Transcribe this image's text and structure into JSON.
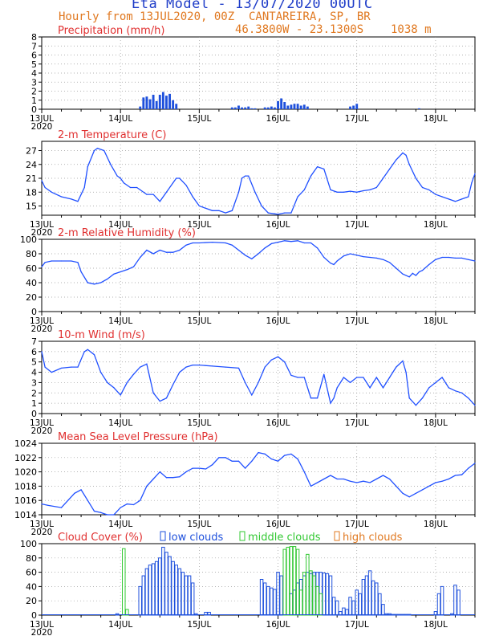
{
  "header": {
    "title": "Eta Model - 13/07/2020 00UTC",
    "subtitle": "Hourly from 13JUL2020, 00Z",
    "location": "CANTAREIRA, SP, BR",
    "coords": "46.3800W - 23.1300S",
    "elevation": "1038  m"
  },
  "colors": {
    "title": "#1e3cc8",
    "info": "#e07820",
    "panel_title": "#e03030",
    "line": "#2050ff",
    "axis": "#000000",
    "grid": "#999999",
    "low": "#1e50dc",
    "mid": "#32c832",
    "high": "#e07820"
  },
  "x_axis": {
    "tick_labels": [
      "13JUL",
      "14JUL",
      "15JUL",
      "16JUL",
      "17JUL",
      "18JUL"
    ],
    "year_label": "2020",
    "range_hours": [
      0,
      132
    ]
  },
  "chart_data": [
    {
      "type": "bar",
      "title": "Precipitation (mm/h)",
      "unit": "mm/h",
      "ylim": [
        0,
        8
      ],
      "yticks": [
        "0",
        "1",
        "2",
        "3",
        "4",
        "5",
        "6",
        "7",
        "8"
      ],
      "x": [
        30,
        31,
        32,
        33,
        34,
        35,
        36,
        37,
        38,
        39,
        40,
        41,
        58,
        59,
        60,
        61,
        62,
        63,
        64,
        65,
        66,
        67,
        68,
        69,
        70,
        71,
        72,
        73,
        74,
        75,
        76,
        77,
        78,
        79,
        80,
        81,
        82,
        83,
        84,
        85,
        86,
        87,
        88,
        89,
        90,
        91,
        92,
        93,
        94,
        95,
        96,
        97,
        98,
        99,
        100,
        101,
        102,
        103,
        104,
        105,
        106,
        107,
        108,
        109,
        110,
        111,
        112,
        113,
        114,
        115,
        116,
        117,
        118,
        119,
        120,
        121,
        122,
        123,
        124,
        125,
        126,
        127,
        128,
        129,
        130,
        131
      ],
      "values": [
        0.3,
        1.3,
        1.4,
        1.1,
        1.6,
        0.9,
        1.6,
        1.9,
        1.5,
        1.7,
        1.0,
        0.6,
        0.2,
        0.2,
        0.4,
        0.2,
        0.2,
        0.3,
        0.1,
        0.1,
        0.0,
        0.0,
        0.2,
        0.2,
        0.3,
        0.2,
        0.9,
        1.2,
        0.8,
        0.4,
        0.5,
        0.6,
        0.6,
        0.4,
        0.5,
        0.3,
        0.0,
        0.0,
        0.0,
        0.0,
        0.0,
        0.0,
        0.0,
        0.0,
        0.0,
        0.0,
        0.0,
        0.0,
        0.3,
        0.4,
        0.6,
        0.0,
        0.0,
        0.0,
        0.0,
        0.0,
        0.0,
        0.0,
        0.0,
        0.0,
        0.0,
        0.0,
        0.0,
        0.0,
        0.0,
        0.0,
        0.0,
        0.0,
        0.0,
        0.1,
        0.0,
        0.0,
        0.0,
        0.0,
        0.0,
        0.0,
        0.0,
        0.0,
        0.0,
        0.0,
        0.0,
        0.0,
        0.0,
        0.0,
        0.0,
        0.0
      ]
    },
    {
      "type": "line",
      "title": "2-m Temperature (C)",
      "unit": "C",
      "ylim": [
        13,
        29
      ],
      "yticks": [
        "15",
        "18",
        "21",
        "24",
        "27"
      ],
      "ytick_values": [
        15,
        18,
        21,
        24,
        27
      ],
      "x": [
        0,
        1,
        3,
        6,
        9,
        11,
        13,
        14,
        16,
        17,
        19,
        21,
        23,
        24,
        25,
        27,
        29,
        30,
        32,
        34,
        36,
        38,
        40,
        41,
        42,
        44,
        46,
        48,
        50,
        52,
        54,
        56,
        58,
        60,
        61,
        62,
        63,
        65,
        67,
        69,
        71,
        72,
        74,
        76,
        78,
        80,
        82,
        83,
        84,
        86,
        88,
        90,
        92,
        94,
        96,
        98,
        100,
        102,
        104,
        106,
        108,
        110,
        111,
        112,
        114,
        116,
        118,
        120,
        122,
        124,
        126,
        128,
        130,
        131,
        132
      ],
      "values": [
        20.5,
        19,
        18,
        17,
        16.5,
        16,
        19,
        23.5,
        27,
        27.5,
        27,
        24,
        21.5,
        21,
        20,
        19,
        19,
        18.5,
        17.5,
        17.5,
        16,
        18,
        20,
        21,
        21,
        19.5,
        17,
        15,
        14.5,
        14,
        14,
        13.5,
        14,
        18,
        21,
        21.5,
        21.5,
        18,
        15,
        13.5,
        13.3,
        13.2,
        13.5,
        13.5,
        17,
        18.5,
        21.5,
        22.5,
        23.5,
        23,
        18.5,
        18,
        18,
        18.2,
        18,
        18.3,
        18.5,
        19,
        21,
        23,
        25,
        26.5,
        26,
        24,
        21,
        19,
        18.5,
        17.5,
        17,
        16.5,
        16,
        16.5,
        17,
        20,
        22
      ]
    },
    {
      "type": "line",
      "title": "2-m Relative Humidity (%)",
      "unit": "%",
      "ylim": [
        0,
        100
      ],
      "yticks": [
        "0",
        "20",
        "40",
        "60",
        "80",
        "100"
      ],
      "ytick_values": [
        0,
        20,
        40,
        60,
        80,
        100
      ],
      "x": [
        0,
        1,
        3,
        6,
        9,
        11,
        12,
        14,
        16,
        18,
        20,
        22,
        24,
        26,
        28,
        30,
        32,
        34,
        36,
        38,
        40,
        42,
        44,
        46,
        48,
        52,
        56,
        58,
        60,
        62,
        64,
        66,
        68,
        70,
        72,
        74,
        76,
        78,
        80,
        82,
        84,
        86,
        88,
        89,
        90,
        92,
        94,
        96,
        98,
        100,
        102,
        104,
        106,
        108,
        110,
        112,
        113,
        114,
        115,
        116,
        118,
        120,
        122,
        124,
        126,
        128,
        130,
        132
      ],
      "values": [
        62,
        68,
        70,
        70,
        70,
        68,
        55,
        40,
        38,
        40,
        45,
        52,
        55,
        58,
        62,
        75,
        85,
        80,
        85,
        82,
        82,
        85,
        92,
        95,
        95,
        96,
        95,
        92,
        85,
        78,
        73,
        80,
        88,
        94,
        96,
        98,
        97,
        98,
        95,
        95,
        88,
        75,
        67,
        65,
        70,
        77,
        80,
        78,
        76,
        75,
        74,
        72,
        68,
        60,
        52,
        48,
        53,
        50,
        55,
        57,
        65,
        72,
        75,
        75,
        74,
        74,
        72,
        70
      ]
    },
    {
      "type": "line",
      "title": "10-m Wind (m/s)",
      "unit": "m/s",
      "ylim": [
        0,
        7
      ],
      "yticks": [
        "0",
        "1",
        "2",
        "3",
        "4",
        "5",
        "6",
        "7"
      ],
      "ytick_values": [
        0,
        1,
        2,
        3,
        4,
        5,
        6,
        7
      ],
      "x": [
        0,
        1,
        3,
        6,
        9,
        11,
        13,
        14,
        16,
        18,
        20,
        22,
        24,
        26,
        28,
        30,
        32,
        34,
        36,
        38,
        40,
        42,
        44,
        46,
        48,
        52,
        56,
        60,
        62,
        64,
        66,
        68,
        70,
        72,
        74,
        76,
        78,
        80,
        82,
        84,
        86,
        88,
        89,
        90,
        92,
        94,
        96,
        98,
        100,
        102,
        104,
        106,
        108,
        110,
        111,
        112,
        114,
        116,
        118,
        120,
        122,
        124,
        126,
        128,
        130,
        132
      ],
      "values": [
        6,
        4.5,
        4,
        4.4,
        4.5,
        4.5,
        6,
        6.2,
        5.7,
        4,
        3,
        2.5,
        1.8,
        3,
        3.8,
        4.5,
        4.8,
        2,
        1.2,
        1.5,
        2.8,
        4,
        4.5,
        4.7,
        4.7,
        4.6,
        4.5,
        4.4,
        3,
        1.8,
        3,
        4.5,
        5.2,
        5.5,
        5,
        3.7,
        3.5,
        3.5,
        1.5,
        1.5,
        3.8,
        1,
        1.5,
        2.5,
        3.5,
        3,
        3.5,
        3.5,
        2.5,
        3.5,
        2.5,
        3.5,
        4.5,
        5.1,
        4,
        1.5,
        0.8,
        1.5,
        2.5,
        3,
        3.5,
        2.5,
        2.2,
        2,
        1.5,
        0.8
      ]
    },
    {
      "type": "line",
      "title": "Mean Sea Level Pressure (hPa)",
      "unit": "hPa",
      "ylim": [
        1014,
        1024
      ],
      "yticks": [
        "1014",
        "1016",
        "1018",
        "1020",
        "1022",
        "1024"
      ],
      "ytick_values": [
        1014,
        1016,
        1018,
        1020,
        1022,
        1024
      ],
      "x": [
        0,
        2,
        6,
        8,
        10,
        12,
        14,
        16,
        18,
        20,
        22,
        24,
        26,
        28,
        30,
        32,
        34,
        36,
        38,
        40,
        42,
        44,
        46,
        48,
        50,
        52,
        54,
        56,
        58,
        60,
        62,
        64,
        66,
        68,
        70,
        72,
        74,
        76,
        78,
        80,
        82,
        84,
        86,
        88,
        90,
        92,
        94,
        96,
        98,
        100,
        102,
        104,
        106,
        108,
        110,
        112,
        114,
        116,
        118,
        120,
        122,
        124,
        126,
        128,
        130,
        132
      ],
      "values": [
        1015.5,
        1015.3,
        1015,
        1016,
        1017,
        1017.5,
        1016,
        1014.5,
        1014.3,
        1014,
        1014,
        1015,
        1015.5,
        1015.4,
        1016,
        1018,
        1019,
        1020,
        1019.2,
        1019.2,
        1019.3,
        1020,
        1020.5,
        1020.5,
        1020.4,
        1021,
        1022,
        1022,
        1021.5,
        1021.5,
        1020.5,
        1021.5,
        1022.7,
        1022.5,
        1021.8,
        1021.5,
        1022.3,
        1022.5,
        1021.8,
        1020,
        1018,
        1018.5,
        1019,
        1019.5,
        1019,
        1019,
        1018.7,
        1018.5,
        1018.7,
        1018.5,
        1019,
        1019.5,
        1019,
        1018,
        1017,
        1016.5,
        1017,
        1017.5,
        1018,
        1018.5,
        1018.7,
        1019,
        1019.5,
        1019.6,
        1020.5,
        1021.2
      ]
    },
    {
      "type": "bar",
      "title": "Cloud Cover (%)",
      "unit": "%",
      "ylim": [
        0,
        100
      ],
      "yticks": [
        "0",
        "20",
        "40",
        "60",
        "80",
        "100"
      ],
      "ytick_values": [
        0,
        20,
        40,
        60,
        80,
        100
      ],
      "legend": [
        "low clouds",
        "middle clouds",
        "high clouds"
      ],
      "series": [
        {
          "name": "low clouds",
          "x": [
            23,
            30,
            31,
            32,
            33,
            34,
            35,
            36,
            37,
            38,
            39,
            40,
            41,
            42,
            43,
            44,
            45,
            46,
            47,
            50,
            51,
            67,
            68,
            69,
            70,
            71,
            72,
            73,
            76,
            77,
            78,
            79,
            80,
            81,
            82,
            83,
            84,
            85,
            86,
            87,
            88,
            89,
            90,
            91,
            92,
            93,
            94,
            95,
            96,
            97,
            98,
            99,
            100,
            101,
            102,
            103,
            104,
            105,
            106,
            107,
            108,
            109,
            110,
            111,
            112,
            120,
            121,
            122,
            125,
            126,
            127
          ],
          "values": [
            2,
            40,
            55,
            65,
            70,
            72,
            75,
            80,
            95,
            88,
            82,
            75,
            70,
            65,
            60,
            55,
            55,
            45,
            2,
            4,
            4,
            50,
            45,
            40,
            38,
            36,
            60,
            55,
            30,
            35,
            45,
            50,
            55,
            60,
            58,
            60,
            60,
            60,
            59,
            58,
            55,
            25,
            20,
            5,
            10,
            8,
            25,
            20,
            35,
            30,
            50,
            55,
            62,
            48,
            45,
            30,
            15,
            2,
            2,
            1,
            1,
            1,
            1,
            1,
            1,
            5,
            30,
            40,
            2,
            42,
            35
          ]
        },
        {
          "name": "middle clouds",
          "x": [
            25,
            26,
            74,
            75,
            76,
            77,
            78,
            79,
            80,
            81,
            82,
            83,
            84,
            85
          ],
          "values": [
            93,
            8,
            92,
            95,
            96,
            96,
            92,
            35,
            60,
            85,
            62,
            55,
            40,
            30
          ]
        },
        {
          "name": "high clouds",
          "x": [],
          "values": []
        }
      ]
    }
  ]
}
